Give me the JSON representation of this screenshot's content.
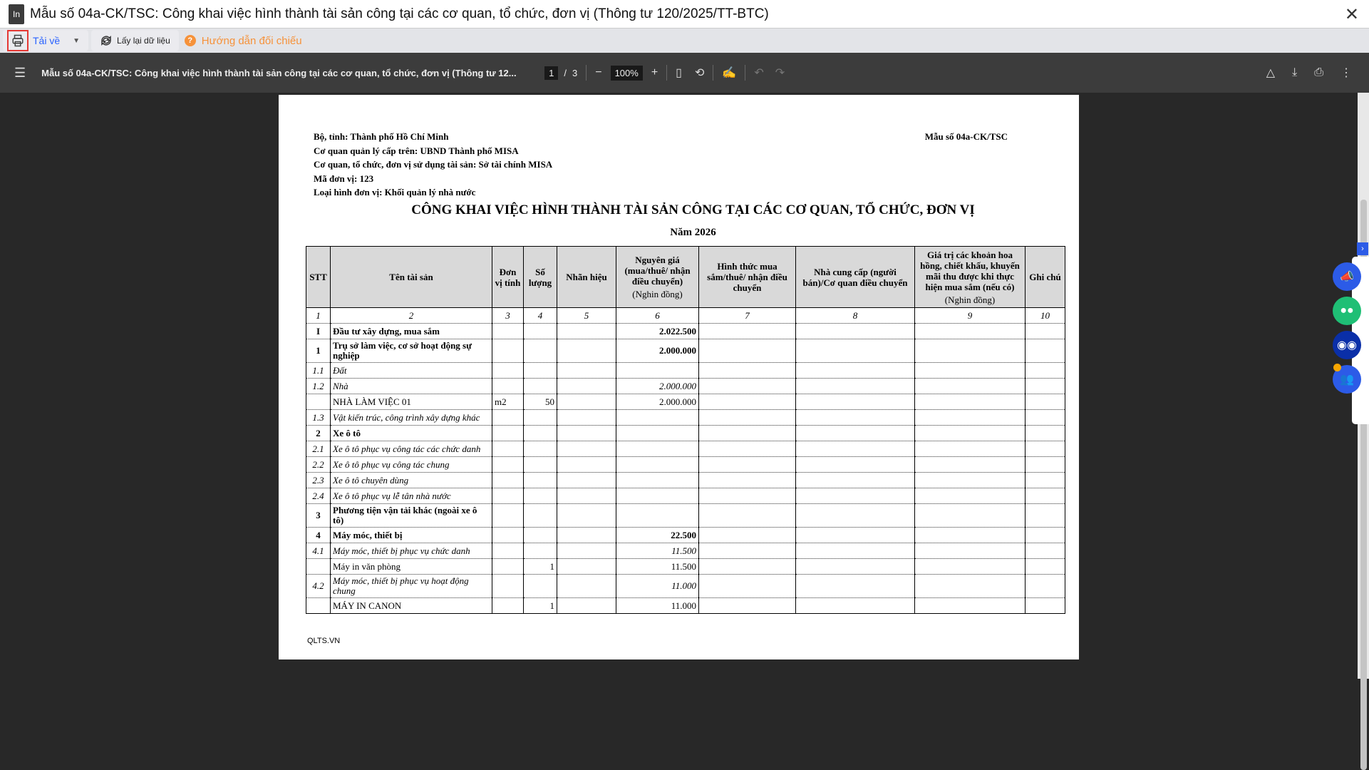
{
  "window": {
    "logo": "In",
    "title": "Mẫu số 04a-CK/TSC: Công khai việc hình thành tài sản công tại các cơ quan, tổ chức, đơn vị (Thông tư 120/2025/TT-BTC)",
    "close": "✕"
  },
  "toolbar": {
    "download": "Tải về",
    "reload": "Lấy lại dữ liệu",
    "guide": "Hướng dẫn đối chiếu"
  },
  "viewer": {
    "doc_title": "Mẫu số 04a-CK/TSC: Công khai việc hình thành tài sản công tại các cơ quan, tổ chức, đơn vị (Thông tư 12...",
    "current_page": "1",
    "total_pages": "3",
    "zoom": "100%"
  },
  "doc": {
    "header_lines": [
      "Bộ, tỉnh: Thành phố Hồ Chí Minh",
      "Cơ quan quản lý cấp trên: UBND Thành phố MISA",
      "Cơ quan, tổ chức, đơn vị sử dụng tài sản: Sở tài chính MISA",
      "Mã đơn vị: 123",
      "Loại hình đơn vị: Khối quản lý nhà nước"
    ],
    "form_no": "Mẫu số 04a-CK/TSC",
    "title": "CÔNG KHAI VIỆC HÌNH THÀNH TÀI SẢN CÔNG TẠI CÁC CƠ QUAN, TỔ CHỨC, ĐƠN VỊ",
    "year": "Năm 2026",
    "columns": [
      {
        "label": "STT"
      },
      {
        "label": "Tên tài sản"
      },
      {
        "label": "Đơn vị tính"
      },
      {
        "label": "Số lượng"
      },
      {
        "label": "Nhãn hiệu"
      },
      {
        "label": "Nguyên giá (mua/thuê/ nhận điều chuyển)",
        "unit": "(Nghin đồng)"
      },
      {
        "label": "Hình thức mua sắm/thuê/ nhận điều chuyển"
      },
      {
        "label": "Nhà cung cấp (người bán)/Cơ quan điều chuyển"
      },
      {
        "label": "Giá trị các khoản hoa hồng, chiết khấu, khuyến mãi thu được khi thực hiện mua sắm (nếu có)",
        "unit": "(Nghin đồng)"
      },
      {
        "label": "Ghi chú"
      }
    ],
    "column_numbers": [
      "1",
      "2",
      "3",
      "4",
      "5",
      "6",
      "7",
      "8",
      "9",
      "10"
    ],
    "rows": [
      {
        "style": "b",
        "stt": "I",
        "name": "Đầu tư xây dựng, mua sắm",
        "unit": "",
        "qty": "",
        "brand": "",
        "cost": "2.022.500"
      },
      {
        "style": "b",
        "two": true,
        "stt": "1",
        "name": "Trụ sở làm việc, cơ sở hoạt động sự nghiệp",
        "unit": "",
        "qty": "",
        "brand": "",
        "cost": "2.000.000"
      },
      {
        "style": "i",
        "stt": "1.1",
        "name": "Đất",
        "unit": "",
        "qty": "",
        "brand": "",
        "cost": ""
      },
      {
        "style": "i",
        "stt": "1.2",
        "name": "Nhà",
        "unit": "",
        "qty": "",
        "brand": "",
        "cost": "2.000.000"
      },
      {
        "style": "n",
        "stt": "",
        "name": "NHÀ LÀM VIỆC 01",
        "unit": "m2",
        "qty": "50",
        "brand": "",
        "cost": "2.000.000"
      },
      {
        "style": "i",
        "stt": "1.3",
        "name": "Vật kiến trúc, công trình xây dựng khác",
        "unit": "",
        "qty": "",
        "brand": "",
        "cost": ""
      },
      {
        "style": "b",
        "stt": "2",
        "name": "Xe ô tô",
        "unit": "",
        "qty": "",
        "brand": "",
        "cost": ""
      },
      {
        "style": "i",
        "stt": "2.1",
        "name": "Xe ô tô phục vụ công tác các chức danh",
        "unit": "",
        "qty": "",
        "brand": "",
        "cost": ""
      },
      {
        "style": "i",
        "stt": "2.2",
        "name": "Xe ô tô phục vụ công tác chung",
        "unit": "",
        "qty": "",
        "brand": "",
        "cost": ""
      },
      {
        "style": "i",
        "stt": "2.3",
        "name": "Xe ô tô chuyên dùng",
        "unit": "",
        "qty": "",
        "brand": "",
        "cost": ""
      },
      {
        "style": "i",
        "stt": "2.4",
        "name": "Xe ô tô phục vụ lễ tân nhà nước",
        "unit": "",
        "qty": "",
        "brand": "",
        "cost": ""
      },
      {
        "style": "b",
        "two": true,
        "stt": "3",
        "name": "Phương tiện vận tải khác (ngoài xe ô tô)",
        "unit": "",
        "qty": "",
        "brand": "",
        "cost": ""
      },
      {
        "style": "b",
        "stt": "4",
        "name": "Máy móc, thiết bị",
        "unit": "",
        "qty": "",
        "brand": "",
        "cost": "22.500"
      },
      {
        "style": "i",
        "stt": "4.1",
        "name": "Máy móc, thiết bị phục vụ chức danh",
        "unit": "",
        "qty": "",
        "brand": "",
        "cost": "11.500"
      },
      {
        "style": "n",
        "stt": "",
        "name": "Máy in văn phòng",
        "unit": "",
        "qty": "1",
        "brand": "",
        "cost": "11.500"
      },
      {
        "style": "i",
        "two": true,
        "stt": "4.2",
        "name": "Máy móc, thiết bị phục vụ hoạt động chung",
        "unit": "",
        "qty": "",
        "brand": "",
        "cost": "11.000"
      },
      {
        "style": "n",
        "stt": "",
        "name": "MÁY IN CANON",
        "unit": "",
        "qty": "1",
        "brand": "",
        "cost": "11.000"
      }
    ],
    "footer": "QLTS.VN"
  },
  "widget": {
    "icons": [
      "megaphone-icon",
      "chat-icon",
      "robot-icon",
      "community-icon"
    ],
    "colors": {
      "blue": "#2c5be7",
      "green": "#1fbf75",
      "navy": "#0a2fa8",
      "badge": "#f7a600"
    }
  },
  "colors": {
    "accent": "#2962ff",
    "guide": "#f6923a",
    "highlight": "#e53935"
  }
}
